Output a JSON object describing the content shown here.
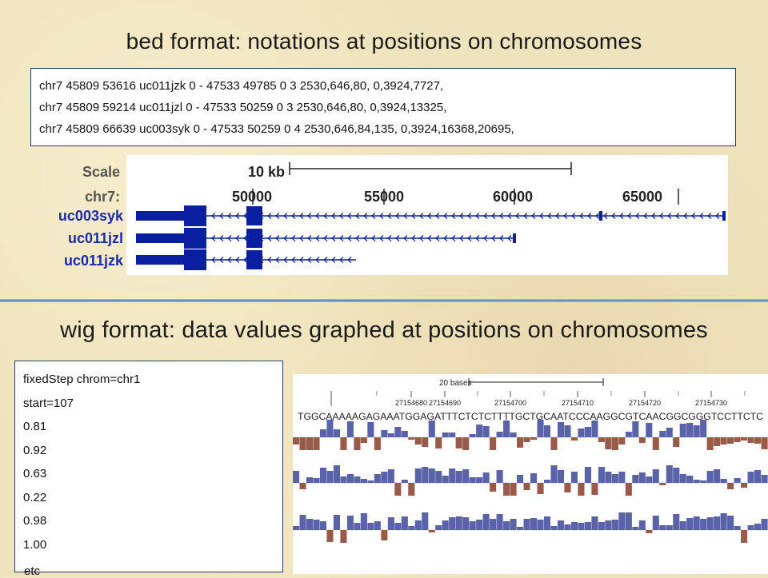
{
  "bed": {
    "title": "bed format: notations at positions on chromosomes",
    "lines": [
      "chr7 45809 53616 uc011jzk 0 - 47533 49785 0 3 2530,646,80, 0,3924,7727,",
      "chr7 45809 59214 uc011jzl 0 - 47533 50259 0 3 2530,646,80, 0,3924,13325,",
      "chr7 45809 66639 uc003syk 0 - 47533 50259 0 4 2530,646,84,135, 0,3924,16368,20695,"
    ],
    "browser": {
      "scale_label": "Scale",
      "scale_bar_label": "10 kb",
      "chrom_label": "chr7:",
      "positions": [
        "50000",
        "55000",
        "60000",
        "65000"
      ],
      "tracks": [
        "uc003syk",
        "uc011jzl",
        "uc011jzk"
      ],
      "track_color": "#0a1fa0"
    }
  },
  "wig": {
    "title": "wig format: data values graphed at positions on chromosomes",
    "header_lines": [
      "fixedStep chrom=chr1",
      "start=107"
    ],
    "values": [
      "0.81",
      "0.92",
      "0.63",
      "0.22",
      "0.98",
      "1.00"
    ],
    "etc": "etc",
    "browser": {
      "scale_bar_label": "20 bases",
      "positions": [
        "27154680",
        "27154690",
        "27154700",
        "27154710",
        "27154720",
        "27154730"
      ],
      "sequence": "TGGCAAAAAGAGAAATGGAGATTTCTCTCTTTTGCTGCAATCCCAAGGCGTCAACGGCGGGTCCTTCTC",
      "positive_color": "#5a62a8",
      "negative_color": "#9a5a4a"
    }
  },
  "colors": {
    "background": "#efe3bd",
    "divider": "#4d77b8",
    "text": "#111111"
  }
}
